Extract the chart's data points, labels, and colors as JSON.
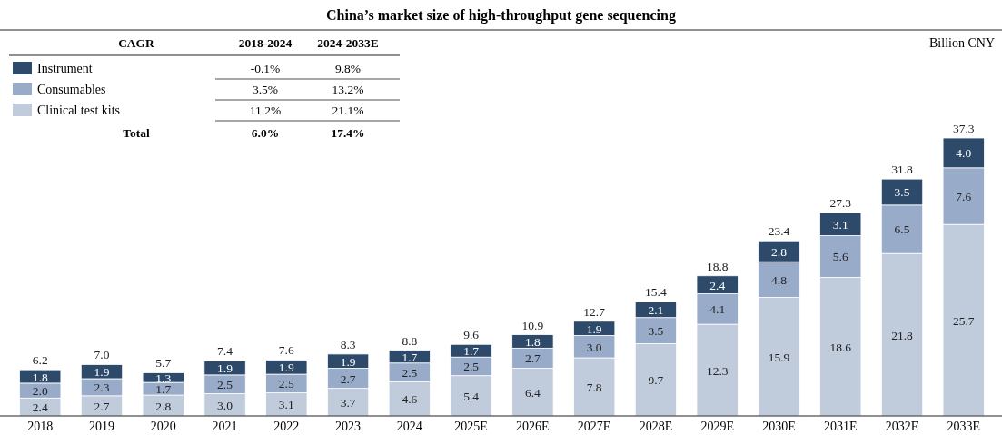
{
  "chart_data": {
    "type": "bar",
    "title": "China’s market size of high-throughput gene sequencing",
    "categories": [
      "2018",
      "2019",
      "2020",
      "2021",
      "2022",
      "2023",
      "2024",
      "2025E",
      "2026E",
      "2027E",
      "2028E",
      "2029E",
      "2030E",
      "2031E",
      "2032E",
      "2033E"
    ],
    "stacked": true,
    "legend": "top left",
    "series": [
      {
        "name": "Clinical test kits",
        "color": "#c0cbdc",
        "values": [
          2.4,
          2.7,
          2.8,
          3.0,
          3.1,
          3.7,
          4.6,
          5.4,
          6.4,
          7.8,
          9.7,
          12.3,
          15.9,
          18.6,
          21.8,
          25.7
        ],
        "value_labels": [
          "2.4",
          "2.7",
          "2.8",
          "3.0",
          "3.1",
          "3.7",
          "4.6",
          "5.4",
          "6.4",
          "7.8",
          "9.7",
          "12.3",
          "15.9",
          "18.6",
          "21.8",
          "25.7"
        ]
      },
      {
        "name": "Consumables",
        "color": "#98abc8",
        "values": [
          2.0,
          2.3,
          1.7,
          2.5,
          2.5,
          2.7,
          2.5,
          2.5,
          2.7,
          3.0,
          3.5,
          4.1,
          4.8,
          5.6,
          6.5,
          7.6
        ],
        "value_labels": [
          "2.0",
          "2.3",
          "1.7",
          "2.5",
          "2.5",
          "2.7",
          "2.5",
          "2.5",
          "2.7",
          "3.0",
          "3.5",
          "4.1",
          "4.8",
          "5.6",
          "6.5",
          "7.6"
        ]
      },
      {
        "name": "Instrument",
        "color": "#2e4a6b",
        "values": [
          1.8,
          1.9,
          1.3,
          1.9,
          1.9,
          1.9,
          1.7,
          1.7,
          1.8,
          1.9,
          2.1,
          2.4,
          2.8,
          3.1,
          3.5,
          4.0
        ],
        "value_labels": [
          "1.8",
          "1.9",
          "1.3",
          "1.9",
          "1.9",
          "1.9",
          "1.7",
          "1.7",
          "1.8",
          "1.9",
          "2.1",
          "2.4",
          "2.8",
          "3.1",
          "3.5",
          "4.0"
        ]
      }
    ],
    "totals": [
      "6.2",
      "7.0",
      "5.7",
      "7.4",
      "7.6",
      "8.3",
      "8.8",
      "9.6",
      "10.9",
      "12.7",
      "15.4",
      "18.8",
      "23.4",
      "27.3",
      "31.8",
      "37.3"
    ],
    "annotations": [
      "Billion CNY",
      "CAGR",
      "2018-2024",
      "2024-2033E",
      "11.2%",
      "21.1%",
      "3.5%",
      "13.2%",
      "-0.1%",
      "9.8%",
      "Total",
      "6.0%",
      "17.4%"
    ]
  }
}
